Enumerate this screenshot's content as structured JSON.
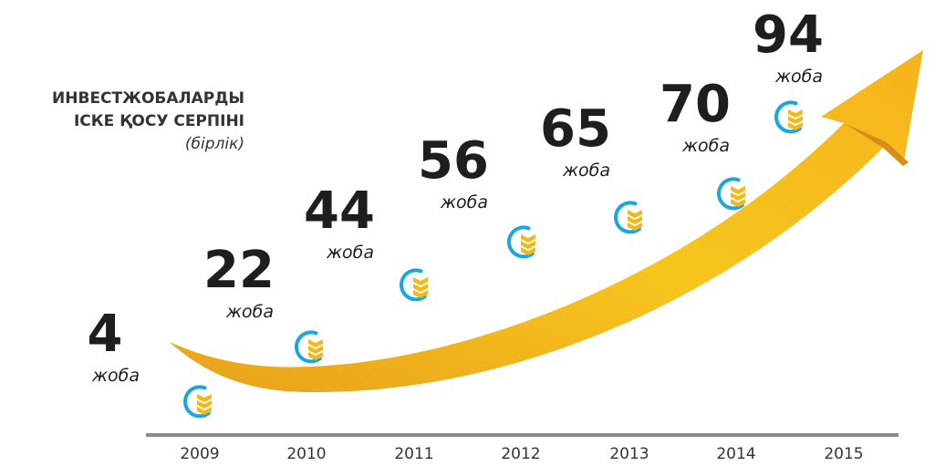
{
  "title": {
    "line1": "ИНВЕСТЖОБАЛАРДЫ",
    "line2": "ІСКЕ ҚОСУ СЕРПІНІ",
    "unit": "(бірлік)"
  },
  "items": [
    {
      "year": "2009",
      "value": 4,
      "unit": "жоба"
    },
    {
      "year": "2010",
      "value": 22,
      "unit": "жоба"
    },
    {
      "year": "2011",
      "value": 44,
      "unit": "жоба"
    },
    {
      "year": "2012",
      "value": 56,
      "unit": "жоба"
    },
    {
      "year": "2013",
      "value": 65,
      "unit": "жоба"
    },
    {
      "year": "2014",
      "value": 70,
      "unit": "жоба"
    },
    {
      "year": "2015",
      "value": 94,
      "unit": "жоба"
    }
  ]
}
